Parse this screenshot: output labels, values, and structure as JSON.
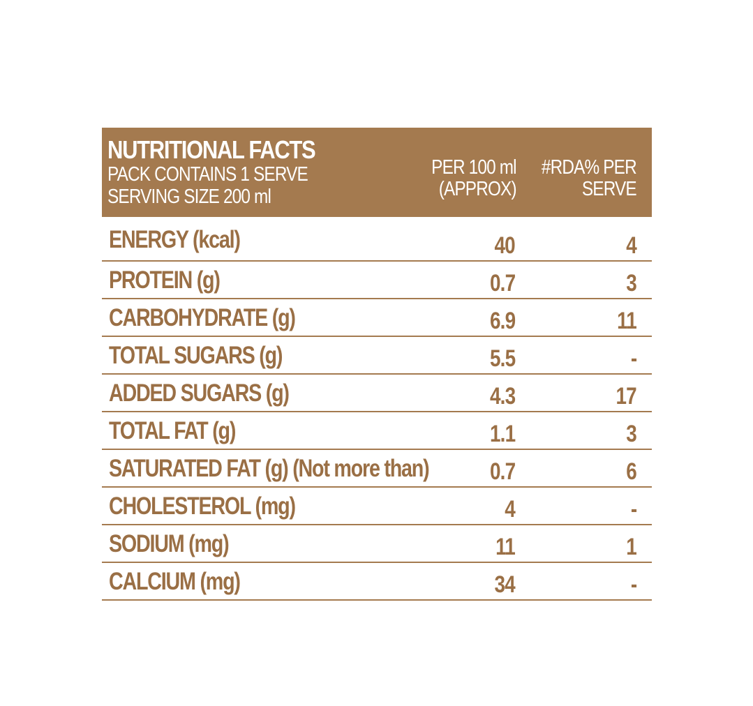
{
  "header": {
    "title": "NUTRITIONAL FACTS",
    "pack": "PACK CONTAINS 1 SERVE",
    "serving": "SERVING SIZE 200 ml",
    "col_per100_line1": "PER 100 ml",
    "col_per100_line2": "(APPROX)",
    "col_rda_line1": "#RDA% PER",
    "col_rda_line2": "SERVE"
  },
  "rows": [
    {
      "label": "ENERGY (kcal)",
      "per100": "40",
      "rda": "4"
    },
    {
      "label": "PROTEIN (g)",
      "per100": "0.7",
      "rda": "3"
    },
    {
      "label": "CARBOHYDRATE (g)",
      "per100": "6.9",
      "rda": "11"
    },
    {
      "label": "TOTAL SUGARS (g)",
      "per100": "5.5",
      "rda": "-"
    },
    {
      "label": "ADDED SUGARS (g)",
      "per100": "4.3",
      "rda": "17"
    },
    {
      "label": "TOTAL FAT (g)",
      "per100": "1.1",
      "rda": "3"
    },
    {
      "label": "SATURATED FAT (g) (Not more than)",
      "per100": "0.7",
      "rda": "6"
    },
    {
      "label": "CHOLESTEROL (mg)",
      "per100": "4",
      "rda": "-"
    },
    {
      "label": "SODIUM (mg)",
      "per100": "11",
      "rda": "1"
    },
    {
      "label": "CALCIUM (mg)",
      "per100": "34",
      "rda": "-"
    }
  ],
  "colors": {
    "header_bg": "#a47a4f",
    "text": "#9a6f45",
    "rule": "#a47a4f"
  }
}
